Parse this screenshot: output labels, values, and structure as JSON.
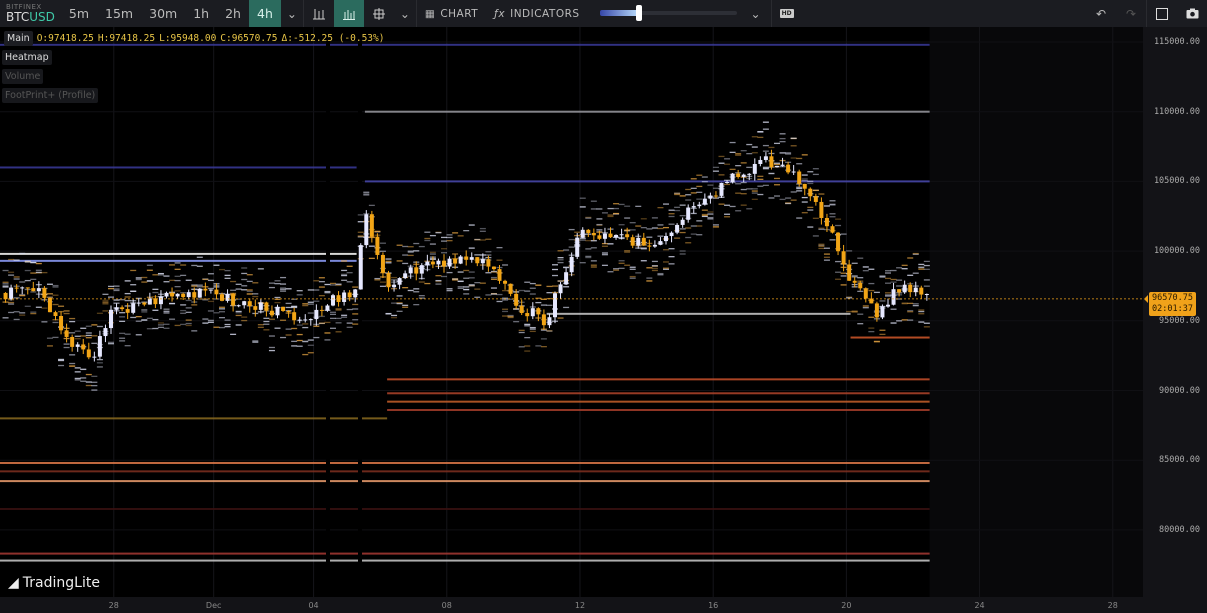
{
  "toolbar": {
    "exchange": "BITFINEX",
    "base": "BTC",
    "quote": "USD",
    "timeframes": [
      "5m",
      "15m",
      "30m",
      "1h",
      "2h",
      "4h"
    ],
    "active_timeframe": "4h",
    "chart_label": "CHART",
    "indicators_label": "INDICATORS",
    "hd_label": "HD",
    "icons": [
      "chevron-down-icon",
      "candles-icon",
      "bars-icon",
      "crosshair-icon",
      "undo-icon",
      "redo-icon",
      "fullscreen-icon",
      "camera-icon"
    ]
  },
  "legend": {
    "main": "Main",
    "open": "O:97418.25",
    "high": "H:97418.25",
    "low": "L:95948.00",
    "close": "C:96570.75",
    "change": "Δ:-512.25 (-0.53%)"
  },
  "layers": [
    {
      "label": "Heatmap",
      "active": true
    },
    {
      "label": "Volume",
      "active": false
    },
    {
      "label": "FootPrint+ (Profile)",
      "active": false
    }
  ],
  "last_price": {
    "price": "96570.75",
    "countdown": "02:01:37",
    "color": "#f0a21a"
  },
  "logo": "TradingLite",
  "colors": {
    "bull": "#e6e8ff",
    "bear": "#f2a516",
    "accent": "#2b6b5e"
  },
  "chart_data": {
    "type": "candlestick-heatmap",
    "interval": "4h",
    "y_ticks": [
      115000,
      110000,
      105000,
      100000,
      95000,
      90000,
      85000,
      80000
    ],
    "y_tick_labels": [
      "115000.00",
      "110000.00",
      "105000.00",
      "100000.00",
      "95000.00",
      "90000.00",
      "85000.00",
      "80000.00"
    ],
    "x_tick_labels": [
      "28",
      "Dec",
      "04",
      "08",
      "12",
      "16",
      "20",
      "24",
      "28"
    ],
    "x_tick_dates": [
      "11-28",
      "12-01",
      "12-04",
      "12-08",
      "12-12",
      "12-16",
      "12-20",
      "12-24",
      "12-28"
    ],
    "view_start": "11-24 14:00",
    "view_end": "12-29 00:00",
    "close_path": [
      [
        "11-24 14:00",
        97000
      ],
      [
        "11-25 19:00",
        97000
      ],
      [
        "11-26 17:00",
        93500
      ],
      [
        "11-27 07:00",
        92000
      ],
      [
        "11-27 22:00",
        95500
      ],
      [
        "11-29 03:00",
        96500
      ],
      [
        "11-30 15:00",
        97000
      ],
      [
        "12-02 10:00",
        96000
      ],
      [
        "12-03 14:00",
        95000
      ],
      [
        "12-04 12:00",
        96500
      ],
      [
        "12-05 07:00",
        97000
      ],
      [
        "12-05 13:00",
        103000
      ],
      [
        "12-06 05:00",
        97000
      ],
      [
        "12-07 05:00",
        99000
      ],
      [
        "12-09 00:00",
        99500
      ],
      [
        "12-10 05:00",
        96000
      ],
      [
        "12-11 00:00",
        95000
      ],
      [
        "12-12 00:00",
        101500
      ],
      [
        "12-14 03:00",
        100500
      ],
      [
        "12-15 15:00",
        103500
      ],
      [
        "12-16 19:00",
        105500
      ],
      [
        "12-17 17:00",
        106500
      ],
      [
        "12-18 15:00",
        105000
      ],
      [
        "12-19 12:00",
        101500
      ],
      [
        "12-20 03:00",
        98000
      ],
      [
        "12-20 22:00",
        95500
      ],
      [
        "12-21 15:00",
        97500
      ],
      [
        "12-22 12:00",
        96570.75
      ]
    ],
    "heatmap_levels": [
      {
        "price": 114800,
        "color": "#3a3a9a",
        "from": "11-24 14:00",
        "to": "12-22 12:00"
      },
      {
        "price": 110000,
        "color": "#9a9aa0",
        "from": "12-05 13:00",
        "to": "12-22 12:00"
      },
      {
        "price": 106000,
        "color": "#3a3a9a",
        "from": "11-24 14:00",
        "to": "12-05 07:00"
      },
      {
        "price": 105000,
        "color": "#4a4ab0",
        "from": "12-05 13:00",
        "to": "12-22 12:00"
      },
      {
        "price": 99800,
        "color": "#ffffff",
        "from": "11-24 14:00",
        "to": "12-05 07:00"
      },
      {
        "price": 99300,
        "color": "#8fa0ff",
        "from": "11-24 14:00",
        "to": "12-05 07:00"
      },
      {
        "price": 95500,
        "color": "#cccccc",
        "from": "12-11 00:00",
        "to": "12-20 03:00"
      },
      {
        "price": 93800,
        "color": "#d2582a",
        "from": "12-20 03:00",
        "to": "12-22 12:00"
      },
      {
        "price": 90800,
        "color": "#c8502a",
        "from": "12-06 05:00",
        "to": "12-22 12:00"
      },
      {
        "price": 89800,
        "color": "#b0442a",
        "from": "12-06 05:00",
        "to": "12-22 12:00"
      },
      {
        "price": 89200,
        "color": "#c8602a",
        "from": "12-06 05:00",
        "to": "12-22 12:00"
      },
      {
        "price": 88600,
        "color": "#a83e2a",
        "from": "12-06 05:00",
        "to": "12-22 12:00"
      },
      {
        "price": 88000,
        "color": "#8a6a20",
        "from": "11-24 14:00",
        "to": "12-06 05:00"
      },
      {
        "price": 84800,
        "color": "#e07a4a",
        "from": "11-24 14:00",
        "to": "12-22 12:00"
      },
      {
        "price": 84200,
        "color": "#803020",
        "from": "11-24 14:00",
        "to": "12-22 12:00"
      },
      {
        "price": 83500,
        "color": "#f0a070",
        "from": "11-24 14:00",
        "to": "12-22 12:00"
      },
      {
        "price": 81500,
        "color": "#3a1010",
        "from": "11-24 14:00",
        "to": "12-22 12:00"
      },
      {
        "price": 78300,
        "color": "#a83a34",
        "from": "11-24 14:00",
        "to": "12-22 12:00"
      },
      {
        "price": 77800,
        "color": "#cccccc",
        "from": "11-24 14:00",
        "to": "12-22 12:00"
      }
    ]
  }
}
